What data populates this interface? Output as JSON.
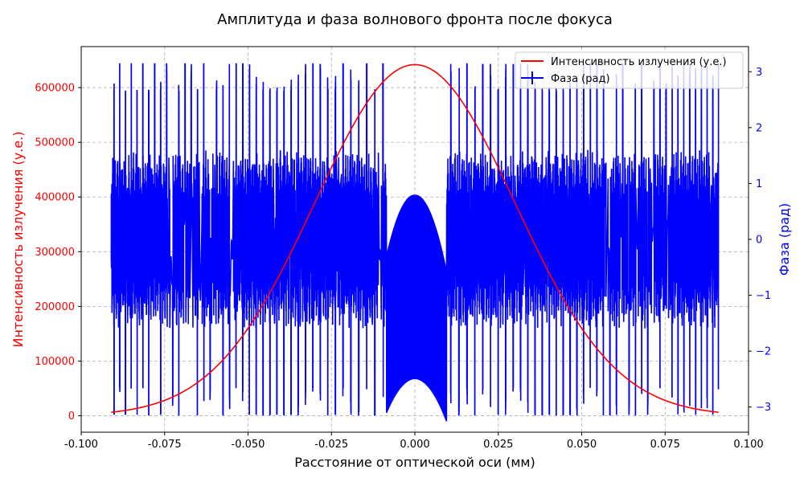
{
  "chart_data": {
    "type": "line",
    "title": "Амплитуда и фаза волнового фронта после фокуса",
    "xlabel": "Расстояние от оптической оси (мм)",
    "ylabel_left": "Интенсивность излучения (у.е.)",
    "ylabel_right": "Фаза (рад)",
    "xlim": [
      -0.1,
      0.1
    ],
    "ylim_left": [
      -30000,
      675000
    ],
    "ylim_right": [
      -3.45,
      3.45
    ],
    "x_ticks": [
      "-0.100",
      "-0.075",
      "-0.050",
      "-0.025",
      "0.000",
      "0.025",
      "0.050",
      "0.075",
      "0.100"
    ],
    "y_left_ticks": [
      "0",
      "100000",
      "200000",
      "300000",
      "400000",
      "500000",
      "600000"
    ],
    "y_right_ticks": [
      "−3",
      "−2",
      "−1",
      "0",
      "1",
      "2",
      "3"
    ],
    "grid": true,
    "legend_position": "top-right",
    "x_range_data": [
      -0.091,
      0.091
    ],
    "series": [
      {
        "name": "Интенсивность излучения (у.е.)",
        "axis": "left",
        "color": "#ff0000",
        "model": "gaussian",
        "peak": 642000,
        "sigma_mm": 0.03,
        "x": [
          -0.09,
          -0.075,
          -0.06,
          -0.045,
          -0.03,
          -0.015,
          0.0,
          0.015,
          0.03,
          0.045,
          0.06,
          0.075,
          0.09
        ],
        "values": [
          7100,
          28000,
          86000,
          208000,
          389000,
          566000,
          642000,
          566000,
          389000,
          208000,
          86000,
          28000,
          7100
        ]
      },
      {
        "name": "Фаза (рад)",
        "axis": "right",
        "color": "#0000ff",
        "model": "wrapped-phase",
        "center_envelope_rad": [
          0.8,
          -2.5
        ],
        "central_window_mm": [
          -0.0085,
          0.0095
        ],
        "wrap_range_rad": [
          -3.14159,
          3.14159
        ]
      }
    ]
  }
}
